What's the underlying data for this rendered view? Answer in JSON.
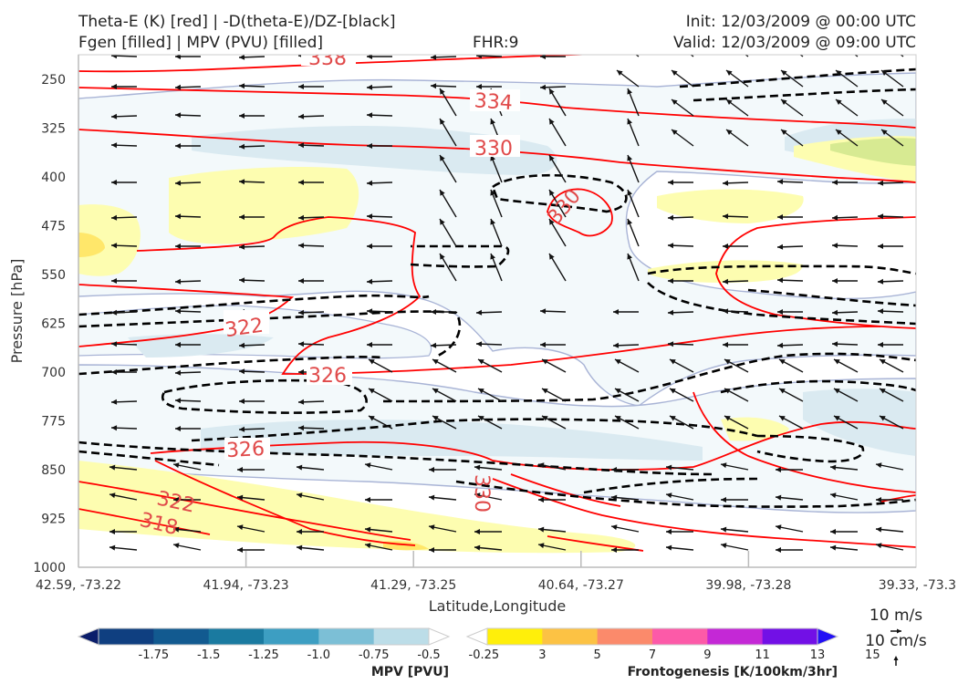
{
  "header": {
    "title_line1_left": "Theta-E (K) [red] | -D(theta-E)/DZ-[black]",
    "title_line2_left": "Fgen [filled] | MPV (PVU) [filled]",
    "fhr": "FHR:9",
    "init": "Init: 12/03/2009 @ 00:00 UTC",
    "valid": "Valid: 12/03/2009 @ 09:00 UTC"
  },
  "chart_data": {
    "type": "cross-section",
    "xlabel": "Latitude,Longitude",
    "ylabel": "Pressure [hPa]",
    "x_ticks": [
      "42.59, -73.22",
      "41.94, -73.23",
      "41.29, -73.25",
      "40.64, -73.27",
      "39.98, -73.28",
      "39.33, -73.3"
    ],
    "y_ticks": [
      250,
      325,
      400,
      475,
      550,
      625,
      700,
      775,
      850,
      925,
      1000
    ],
    "ylim": [
      1000,
      212
    ],
    "y_inverted": true,
    "theta_e_contour_labels": [
      "338",
      "334",
      "330",
      "330",
      "322",
      "326",
      "326",
      "322",
      "318",
      "330"
    ],
    "wind_reference": {
      "label1": "10 m/s",
      "label2": "10 cm/s"
    },
    "mpv_colorbar": {
      "title": "MPV [PVU]",
      "ticks": [
        "-1.75",
        "-1.5",
        "-1.25",
        "-1.0",
        "-0.75",
        "-0.5",
        "-0.25"
      ],
      "colors": [
        "#0b1e6b",
        "#0f3f80",
        "#125a90",
        "#1a7aa0",
        "#3d9ec2",
        "#7cbfd6",
        "#bcdde8",
        "#ffffff"
      ]
    },
    "fgen_colorbar": {
      "title": "Frontogenesis [K/100km/3hr]",
      "ticks": [
        "3",
        "5",
        "7",
        "9",
        "11",
        "13",
        "15"
      ],
      "colors": [
        "#ffffff",
        "#ffef0a",
        "#fcc244",
        "#fb8a6b",
        "#fc5aa8",
        "#c428d6",
        "#7210e6",
        "#2210f5"
      ]
    },
    "colors": {
      "theta_e": "#ff0000",
      "dthetae_dz": "#000000",
      "mpv_light": "#f3f9fb",
      "mpv_mid": "#daeaf1",
      "mpv_edge": "#a9b4d6",
      "fgen_light": "#fdfdb0",
      "fgen_mid": "#fff07a",
      "fgen_green": "#d7ea92"
    }
  }
}
